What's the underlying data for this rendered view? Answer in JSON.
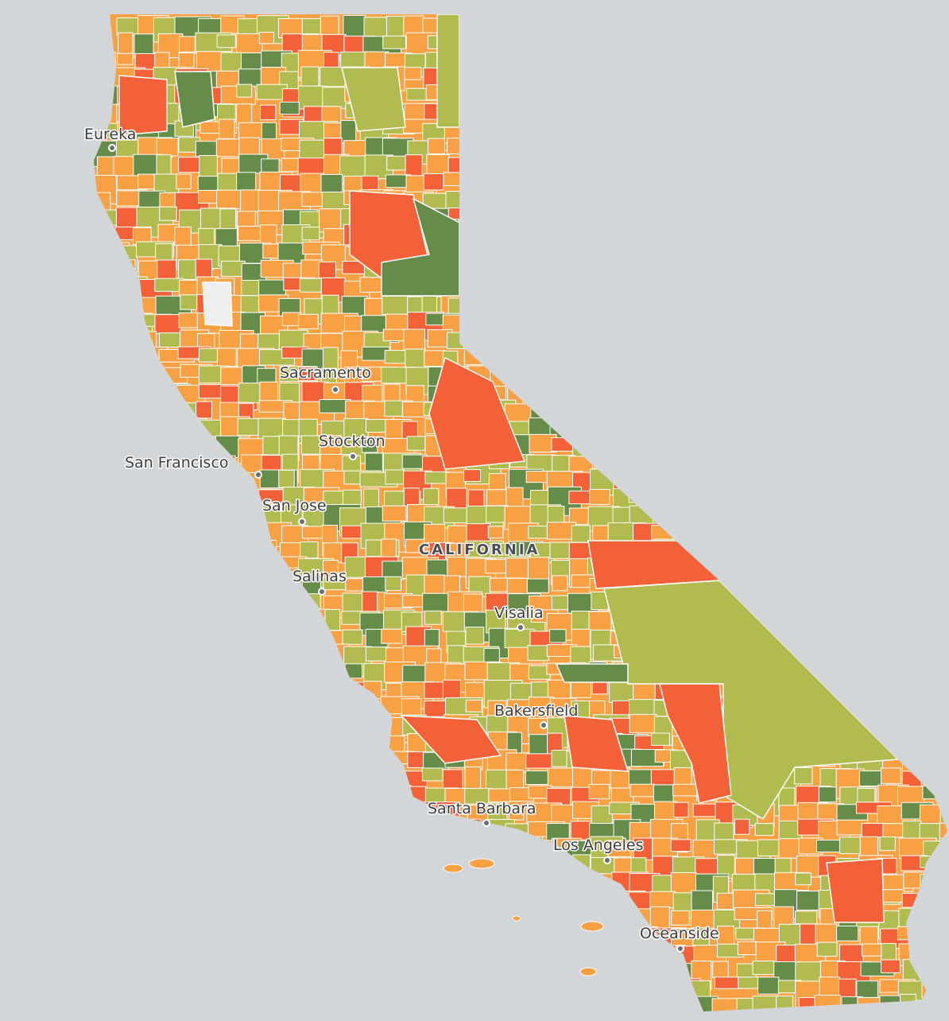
{
  "map": {
    "state_label": "CALIFORNIA",
    "cities": [
      {
        "name": "Eureka"
      },
      {
        "name": "Sacramento"
      },
      {
        "name": "Stockton"
      },
      {
        "name": "San Francisco"
      },
      {
        "name": "San Jose"
      },
      {
        "name": "Salinas"
      },
      {
        "name": "Visalia"
      },
      {
        "name": "Bakersfield"
      },
      {
        "name": "Santa Barbara"
      },
      {
        "name": "Los Angeles"
      },
      {
        "name": "Oceanside"
      }
    ]
  }
}
